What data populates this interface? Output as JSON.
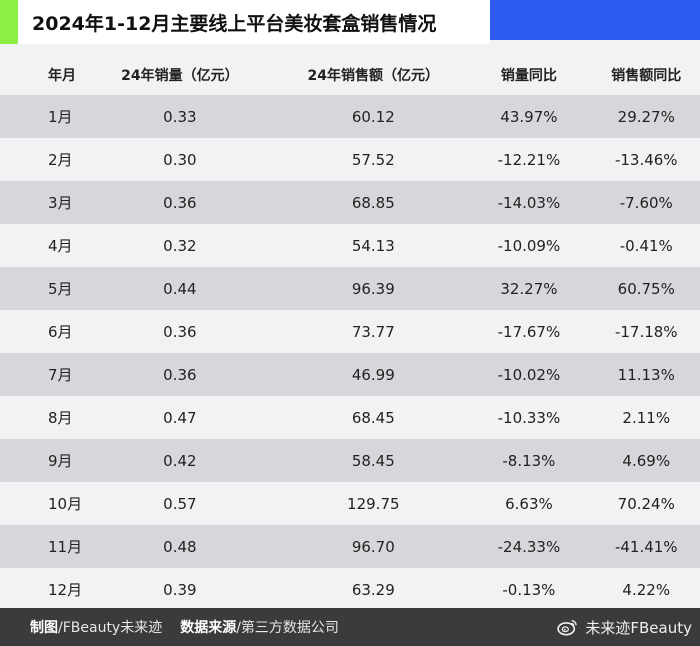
{
  "title": "2024年1-12月主要线上平台美妆套盒销售情况",
  "colors": {
    "accent_green": "#8cf044",
    "accent_blue": "#2f5cf0",
    "row_shade": "#d6d7da",
    "footer_bg": "#3a3b3d"
  },
  "chart_data": {
    "type": "table",
    "title": "2024年1-12月主要线上平台美妆套盒销售情况",
    "columns": [
      "年月",
      "24年销量（亿元）",
      "24年销售额（亿元）",
      "销量同比",
      "销售额同比"
    ],
    "rows": [
      [
        "1月",
        "0.33",
        "60.12",
        "43.97%",
        "29.27%"
      ],
      [
        "2月",
        "0.30",
        "57.52",
        "-12.21%",
        "-13.46%"
      ],
      [
        "3月",
        "0.36",
        "68.85",
        "-14.03%",
        "-7.60%"
      ],
      [
        "4月",
        "0.32",
        "54.13",
        "-10.09%",
        "-0.41%"
      ],
      [
        "5月",
        "0.44",
        "96.39",
        "32.27%",
        "60.75%"
      ],
      [
        "6月",
        "0.36",
        "73.77",
        "-17.67%",
        "-17.18%"
      ],
      [
        "7月",
        "0.36",
        "46.99",
        "-10.02%",
        "11.13%"
      ],
      [
        "8月",
        "0.47",
        "68.45",
        "-10.33%",
        "2.11%"
      ],
      [
        "9月",
        "0.42",
        "58.45",
        "-8.13%",
        "4.69%"
      ],
      [
        "10月",
        "0.57",
        "129.75",
        "6.63%",
        "70.24%"
      ],
      [
        "11月",
        "0.48",
        "96.70",
        "-24.33%",
        "-41.41%"
      ],
      [
        "12月",
        "0.39",
        "63.29",
        "-0.13%",
        "4.22%"
      ]
    ]
  },
  "footer": {
    "maker_label": "制图",
    "maker_value": "/FBeauty未来迹",
    "source_label": "数据来源",
    "source_value": "/第三方数据公司",
    "watermark": "未来迹FBeauty",
    "watermark_icon": "weibo-icon"
  }
}
